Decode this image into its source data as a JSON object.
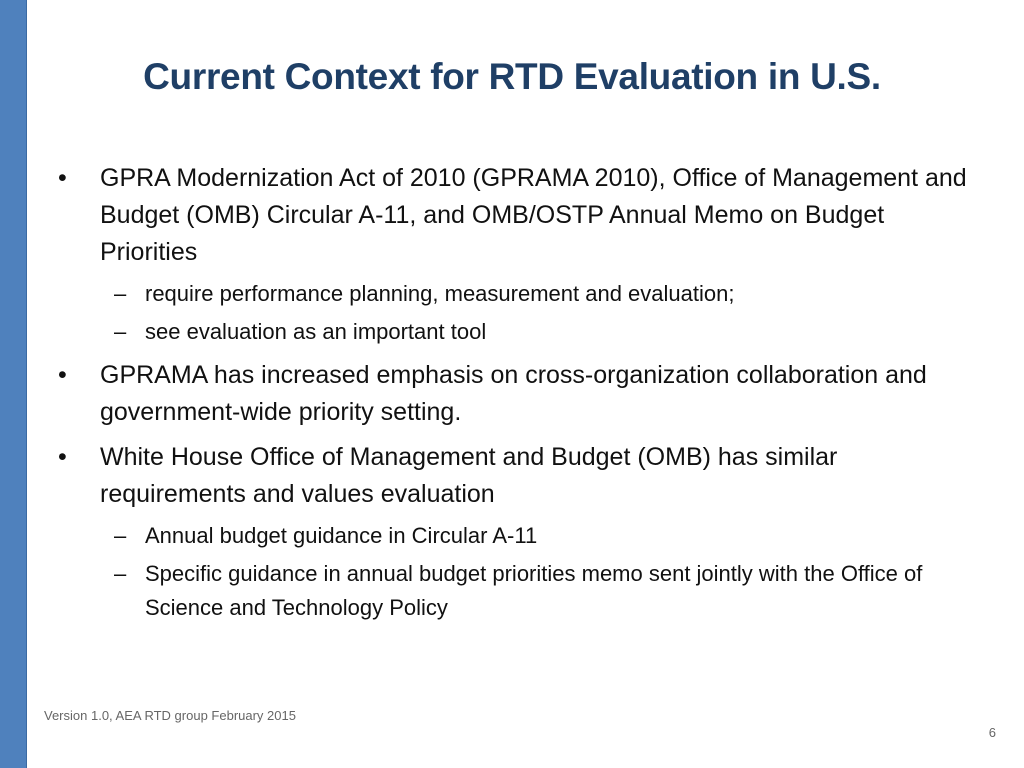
{
  "slide": {
    "title": "Current Context for RTD Evaluation in U.S.",
    "bullets": [
      {
        "text": "GPRA Modernization Act of 2010 (GPRAMA 2010), Office of Management and Budget (OMB) Circular A-11, and OMB/OSTP Annual Memo on Budget Priorities",
        "subitems": [
          "require performance planning, measurement and evaluation;",
          "see evaluation as an important tool"
        ]
      },
      {
        "text": "GPRAMA has increased emphasis on cross-organization collaboration and government-wide priority setting.",
        "subitems": []
      },
      {
        "text": "White House Office of Management and Budget (OMB) has similar requirements and values evaluation",
        "subitems": [
          "Annual budget guidance in Circular A-11",
          "Specific guidance in annual budget priorities memo sent jointly with the Office of Science and Technology Policy"
        ]
      }
    ],
    "bullet_glyph": "•",
    "dash_glyph": "–",
    "footer": "Version 1.0, AEA RTD group February 2015",
    "page_number": "6"
  },
  "colors": {
    "accent_bar": "#4f81bd",
    "title": "#1f3f66",
    "body_text": "#111111",
    "footer_text": "#666666"
  }
}
